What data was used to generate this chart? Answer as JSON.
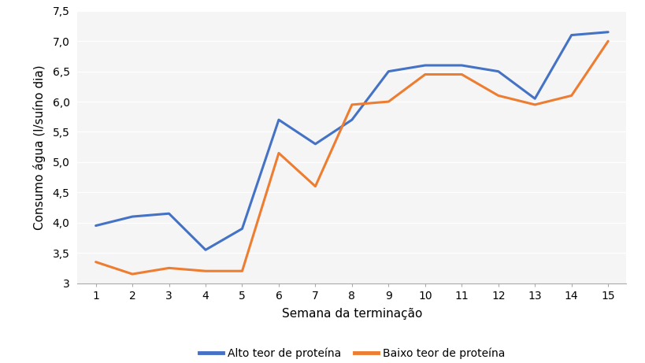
{
  "weeks": [
    1,
    2,
    3,
    4,
    5,
    6,
    7,
    8,
    9,
    10,
    11,
    12,
    13,
    14,
    15
  ],
  "alto_teor": [
    3.95,
    4.1,
    4.15,
    3.55,
    3.9,
    5.7,
    5.3,
    5.7,
    6.5,
    6.6,
    6.6,
    6.5,
    6.05,
    7.1,
    7.15
  ],
  "baixo_teor": [
    3.35,
    3.15,
    3.25,
    3.2,
    3.2,
    5.15,
    4.6,
    5.95,
    6.0,
    6.45,
    6.45,
    6.1,
    5.95,
    6.1,
    7.0
  ],
  "alto_color": "#4472C4",
  "baixo_color": "#ED7D31",
  "alto_label": "Alto teor de proteína",
  "baixo_label": "Baixo teor de proteína",
  "xlabel": "Semana da terminação",
  "ylabel": "Consumo água (l/suíno dia)",
  "ylim": [
    3.0,
    7.5
  ],
  "yticks": [
    3.0,
    3.5,
    4.0,
    4.5,
    5.0,
    5.5,
    6.0,
    6.5,
    7.0,
    7.5
  ],
  "ytick_labels": [
    "3",
    "3,5",
    "4,0",
    "4,5",
    "5,0",
    "5,5",
    "6,0",
    "6,5",
    "7,0",
    "7,5"
  ],
  "xlim": [
    0.5,
    15.5
  ],
  "bg_color": "#FFFFFF",
  "plot_bg_color": "#F5F5F5",
  "grid_color": "#FFFFFF",
  "line_width": 2.2
}
